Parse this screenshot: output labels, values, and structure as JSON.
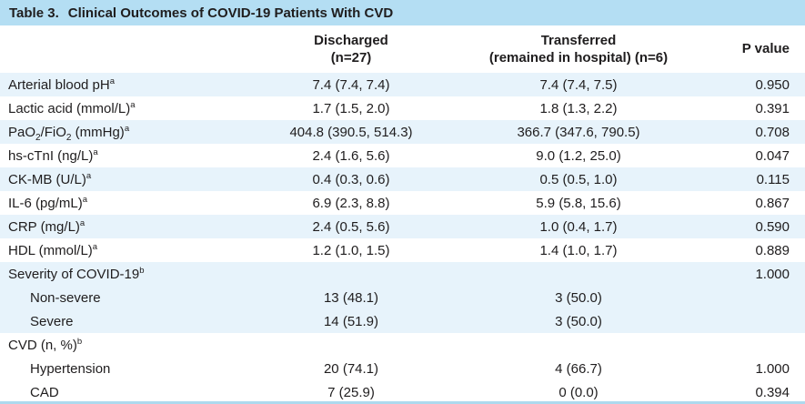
{
  "title": {
    "prefix": "Table 3.",
    "text": "Clinical Outcomes of COVID-19 Patients With CVD"
  },
  "columns": {
    "parameter": "",
    "discharged": {
      "line1": "Discharged",
      "line2": "(n=27)"
    },
    "transferred": {
      "line1": "Transferred",
      "line2": "(remained in hospital) (n=6)"
    },
    "p_value": {
      "line1": "P value"
    }
  },
  "rows": [
    {
      "label": [
        {
          "t": "Arterial blood pH"
        },
        {
          "t": "a",
          "style": "sup"
        }
      ],
      "indent": false,
      "shaded": true,
      "discharged": "7.4 (7.4, 7.4)",
      "transferred": "7.4 (7.4, 7.5)",
      "p_value": "0.950"
    },
    {
      "label": [
        {
          "t": "Lactic acid (mmol/L)"
        },
        {
          "t": "a",
          "style": "sup"
        }
      ],
      "indent": false,
      "shaded": false,
      "discharged": "1.7 (1.5, 2.0)",
      "transferred": "1.8 (1.3, 2.2)",
      "p_value": "0.391"
    },
    {
      "label": [
        {
          "t": "PaO"
        },
        {
          "t": "2",
          "style": "sub"
        },
        {
          "t": "/FiO"
        },
        {
          "t": "2",
          "style": "sub"
        },
        {
          "t": " (mmHg)"
        },
        {
          "t": "a",
          "style": "sup"
        }
      ],
      "indent": false,
      "shaded": true,
      "discharged": "404.8 (390.5, 514.3)",
      "transferred": "366.7 (347.6, 790.5)",
      "p_value": "0.708"
    },
    {
      "label": [
        {
          "t": "hs-cTnI (ng/L)"
        },
        {
          "t": "a",
          "style": "sup"
        }
      ],
      "indent": false,
      "shaded": false,
      "discharged": "2.4 (1.6, 5.6)",
      "transferred": "9.0 (1.2, 25.0)",
      "p_value": "0.047"
    },
    {
      "label": [
        {
          "t": "CK-MB (U/L)"
        },
        {
          "t": "a",
          "style": "sup"
        }
      ],
      "indent": false,
      "shaded": true,
      "discharged": "0.4 (0.3, 0.6)",
      "transferred": "0.5 (0.5, 1.0)",
      "p_value": "0.115"
    },
    {
      "label": [
        {
          "t": "IL-6 (pg/mL)"
        },
        {
          "t": "a",
          "style": "sup"
        }
      ],
      "indent": false,
      "shaded": false,
      "discharged": "6.9 (2.3, 8.8)",
      "transferred": "5.9 (5.8, 15.6)",
      "p_value": "0.867"
    },
    {
      "label": [
        {
          "t": "CRP (mg/L)"
        },
        {
          "t": "a",
          "style": "sup"
        }
      ],
      "indent": false,
      "shaded": true,
      "discharged": "2.4 (0.5, 5.6)",
      "transferred": "1.0 (0.4, 1.7)",
      "p_value": "0.590"
    },
    {
      "label": [
        {
          "t": "HDL (mmol/L)"
        },
        {
          "t": "a",
          "style": "sup"
        }
      ],
      "indent": false,
      "shaded": false,
      "discharged": "1.2 (1.0, 1.5)",
      "transferred": "1.4 (1.0, 1.7)",
      "p_value": "0.889"
    },
    {
      "label": [
        {
          "t": "Severity of COVID-19"
        },
        {
          "t": "b",
          "style": "sup"
        }
      ],
      "indent": false,
      "shaded": true,
      "discharged": "",
      "transferred": "",
      "p_value": "1.000"
    },
    {
      "label": [
        {
          "t": "Non-severe"
        }
      ],
      "indent": true,
      "shaded": true,
      "discharged": "13 (48.1)",
      "transferred": "3 (50.0)",
      "p_value": ""
    },
    {
      "label": [
        {
          "t": "Severe"
        }
      ],
      "indent": true,
      "shaded": true,
      "discharged": "14 (51.9)",
      "transferred": "3 (50.0)",
      "p_value": ""
    },
    {
      "label": [
        {
          "t": "CVD (n, %)"
        },
        {
          "t": "b",
          "style": "sup"
        }
      ],
      "indent": false,
      "shaded": false,
      "discharged": "",
      "transferred": "",
      "p_value": ""
    },
    {
      "label": [
        {
          "t": "Hypertension"
        }
      ],
      "indent": true,
      "shaded": false,
      "discharged": "20 (74.1)",
      "transferred": "4 (66.7)",
      "p_value": "1.000"
    },
    {
      "label": [
        {
          "t": "CAD"
        }
      ],
      "indent": true,
      "shaded": false,
      "discharged": "7 (25.9)",
      "transferred": "0 (0.0)",
      "p_value": "0.394"
    }
  ],
  "colors": {
    "title_bar": "#b4def3",
    "row_stripe": "#e7f3fb",
    "bottom_line": "#aed9ee",
    "text": "#1f1d1e"
  }
}
